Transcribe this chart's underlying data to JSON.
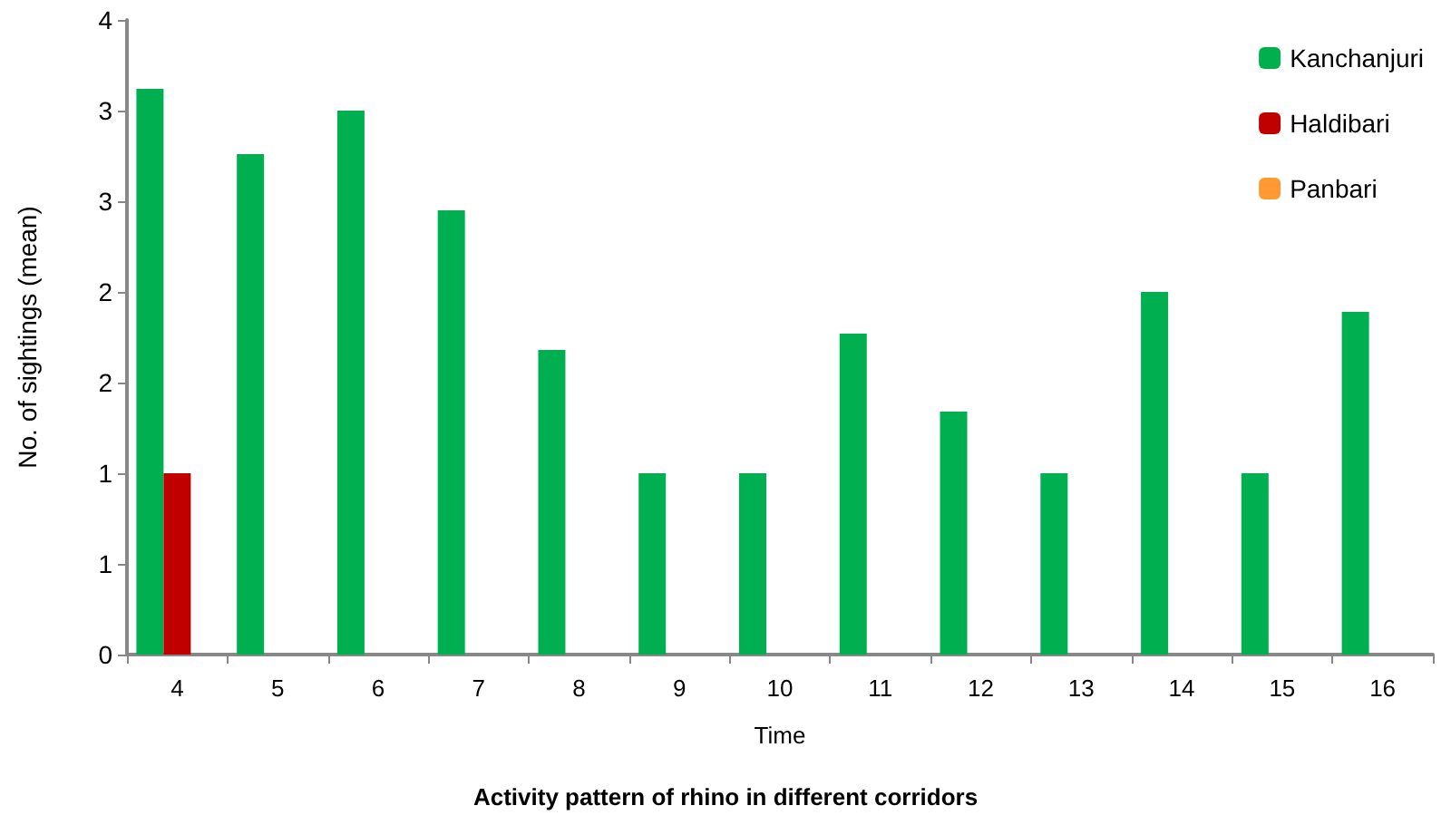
{
  "chart_data": {
    "type": "bar",
    "title": "Activity pattern of rhino in different corridors",
    "xlabel": "Time",
    "ylabel": "No. of sightings (mean)",
    "categories": [
      "4",
      "5",
      "6",
      "7",
      "8",
      "9",
      "10",
      "11",
      "12",
      "13",
      "14",
      "15",
      "16"
    ],
    "series": [
      {
        "name": "Kanchanjuri",
        "color": "#00b050",
        "values": [
          3.12,
          2.76,
          3.0,
          2.45,
          1.68,
          1.0,
          1.0,
          1.77,
          1.34,
          1.0,
          2.0,
          1.0,
          1.89
        ]
      },
      {
        "name": "Haldibari",
        "color": "#c00000",
        "values": [
          1.0,
          0,
          0,
          0,
          0,
          0,
          0,
          0,
          0,
          0,
          0,
          0,
          0
        ]
      },
      {
        "name": "Panbari",
        "color": "#ff9933",
        "values": [
          0,
          0,
          0,
          0,
          0,
          0,
          0,
          0,
          0,
          0,
          0,
          0,
          0
        ]
      }
    ],
    "ylim": [
      0,
      3.5
    ],
    "yticks": [
      0,
      {
        "value": 0.5,
        "label": "1"
      },
      1,
      {
        "value": 1.5,
        "label": "2"
      },
      2,
      {
        "value": 2.5,
        "label": "3"
      },
      3,
      {
        "value": 3.5,
        "label": "4"
      }
    ],
    "grid": false,
    "legend": "top right"
  }
}
